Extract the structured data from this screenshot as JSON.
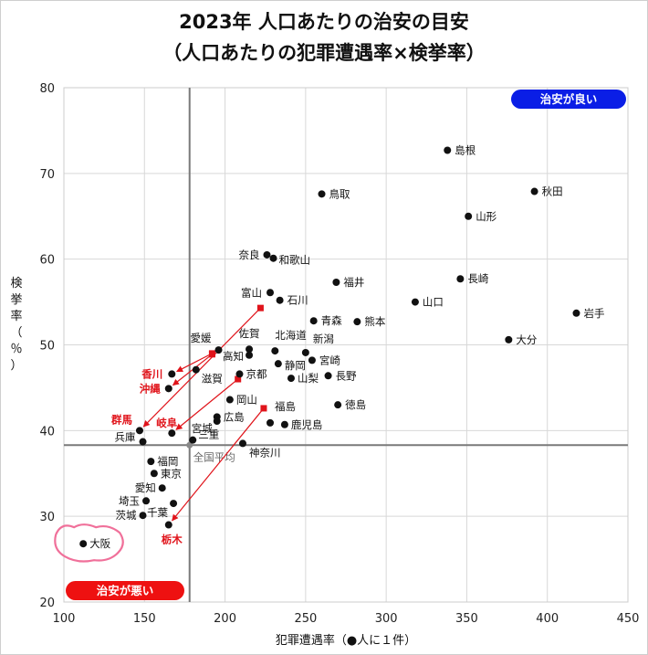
{
  "title_line1": "2023年 人口あたりの治安の目安",
  "title_line2": "（人口あたりの犯罪遭遇率×検挙率）",
  "badges": {
    "good": {
      "label": "治安が良い",
      "color": "#0a1ee6"
    },
    "bad": {
      "label": "治安が悪い",
      "color": "#ee1111"
    }
  },
  "chart_data": {
    "type": "scatter",
    "xlabel": "犯罪遭遇率（●人に１件）",
    "ylabel": "検挙率（％）",
    "xlim": [
      100,
      450
    ],
    "ylim": [
      20,
      80
    ],
    "xticks": [
      100,
      150,
      200,
      250,
      300,
      350,
      400,
      450
    ],
    "yticks": [
      20,
      30,
      40,
      50,
      60,
      70,
      80
    ],
    "average": {
      "label": "全国平均",
      "x": 178,
      "y": 38.3
    },
    "points": [
      {
        "name": "島根",
        "x": 338,
        "y": 72.7
      },
      {
        "name": "秋田",
        "x": 392,
        "y": 67.9
      },
      {
        "name": "鳥取",
        "x": 260,
        "y": 67.6
      },
      {
        "name": "山形",
        "x": 351,
        "y": 65.0
      },
      {
        "name": "奈良",
        "x": 226,
        "y": 60.5
      },
      {
        "name": "和歌山",
        "x": 230,
        "y": 60.1
      },
      {
        "name": "長崎",
        "x": 346,
        "y": 57.7
      },
      {
        "name": "福井",
        "x": 269,
        "y": 57.3
      },
      {
        "name": "富山",
        "x": 228,
        "y": 56.1
      },
      {
        "name": "石川",
        "x": 234,
        "y": 55.2
      },
      {
        "name": "山口",
        "x": 318,
        "y": 55.0
      },
      {
        "name": "岩手",
        "x": 418,
        "y": 53.7
      },
      {
        "name": "青森",
        "x": 255,
        "y": 52.8
      },
      {
        "name": "熊本",
        "x": 282,
        "y": 52.7
      },
      {
        "name": "大分",
        "x": 376,
        "y": 50.6
      },
      {
        "name": "愛媛",
        "x": 196,
        "y": 49.4
      },
      {
        "name": "佐賀",
        "x": 215,
        "y": 49.5
      },
      {
        "name": "北海道",
        "x": 231,
        "y": 49.3
      },
      {
        "name": "新潟",
        "x": 250,
        "y": 49.1
      },
      {
        "name": "高知",
        "x": 215,
        "y": 48.8
      },
      {
        "name": "宮崎",
        "x": 254,
        "y": 48.2
      },
      {
        "name": "静岡",
        "x": 233,
        "y": 47.8
      },
      {
        "name": "京都",
        "x": 209,
        "y": 46.6
      },
      {
        "name": "滋賀",
        "x": 182,
        "y": 47.1
      },
      {
        "name": "山梨",
        "x": 241,
        "y": 46.1
      },
      {
        "name": "長野",
        "x": 264,
        "y": 46.4
      },
      {
        "name": "香川",
        "x": 167,
        "y": 46.6
      },
      {
        "name": "沖縄",
        "x": 165,
        "y": 44.9
      },
      {
        "name": "岡山",
        "x": 203,
        "y": 43.6
      },
      {
        "name": "徳島",
        "x": 270,
        "y": 43.0
      },
      {
        "name": "広島",
        "x": 195,
        "y": 41.6
      },
      {
        "name": "宮城",
        "x": 195,
        "y": 41.1
      },
      {
        "name": "福島",
        "x": 228,
        "y": 40.9
      },
      {
        "name": "鹿児島",
        "x": 237,
        "y": 40.7
      },
      {
        "name": "群馬",
        "x": 147,
        "y": 40.0
      },
      {
        "name": "岐阜",
        "x": 167,
        "y": 39.7
      },
      {
        "name": "兵庫",
        "x": 149,
        "y": 38.7
      },
      {
        "name": "三重",
        "x": 180,
        "y": 38.9
      },
      {
        "name": "神奈川",
        "x": 211,
        "y": 38.5
      },
      {
        "name": "福岡",
        "x": 154,
        "y": 36.4
      },
      {
        "name": "東京",
        "x": 156,
        "y": 35.0
      },
      {
        "name": "愛知",
        "x": 161,
        "y": 33.3
      },
      {
        "name": "埼玉",
        "x": 151,
        "y": 31.8
      },
      {
        "name": "千葉",
        "x": 168,
        "y": 31.5
      },
      {
        "name": "茨城",
        "x": 149,
        "y": 30.1
      },
      {
        "name": "栃木",
        "x": 165,
        "y": 29.0
      },
      {
        "name": "大阪",
        "x": 112,
        "y": 26.8
      }
    ],
    "movements": [
      {
        "name": "香川",
        "from": [
          192,
          49.0
        ],
        "to": [
          167,
          46.6
        ]
      },
      {
        "name": "沖縄",
        "from": [
          192,
          48.9
        ],
        "to": [
          165,
          44.9
        ]
      },
      {
        "name": "群馬",
        "from": [
          222,
          54.3
        ],
        "to": [
          147,
          40.0
        ]
      },
      {
        "name": "岐阜",
        "from": [
          208,
          46.0
        ],
        "to": [
          167,
          39.7
        ]
      },
      {
        "name": "栃木",
        "from": [
          224,
          42.6
        ],
        "to": [
          165,
          29.0
        ]
      }
    ]
  }
}
